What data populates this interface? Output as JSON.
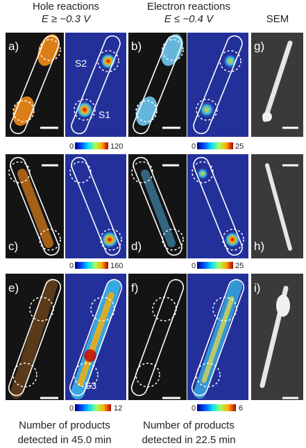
{
  "header": {
    "hole_title": "Hole reactions",
    "hole_condition": "E ≥ −0.3 V",
    "electron_title": "Electron reactions",
    "electron_condition": "E ≤ −0.4 V",
    "sem_title": "SEM"
  },
  "panels": {
    "a": "a)",
    "b": "b)",
    "c": "c)",
    "d": "d)",
    "e": "e)",
    "f": "f)",
    "g": "g)",
    "h": "h)",
    "i": "i)"
  },
  "sites": {
    "s1": "S1",
    "s2": "S2",
    "s3": "S3"
  },
  "colorbars": [
    {
      "min": 0,
      "max": 120
    },
    {
      "min": 0,
      "max": 25
    },
    {
      "min": 0,
      "max": 160
    },
    {
      "min": 0,
      "max": 25
    },
    {
      "min": 0,
      "max": 12
    },
    {
      "min": 0,
      "max": 6
    }
  ],
  "captions": {
    "hole": [
      "Number of products",
      "detected in 45.0 min"
    ],
    "electron": [
      "Number of products",
      "detected in 22.5 min"
    ]
  }
}
